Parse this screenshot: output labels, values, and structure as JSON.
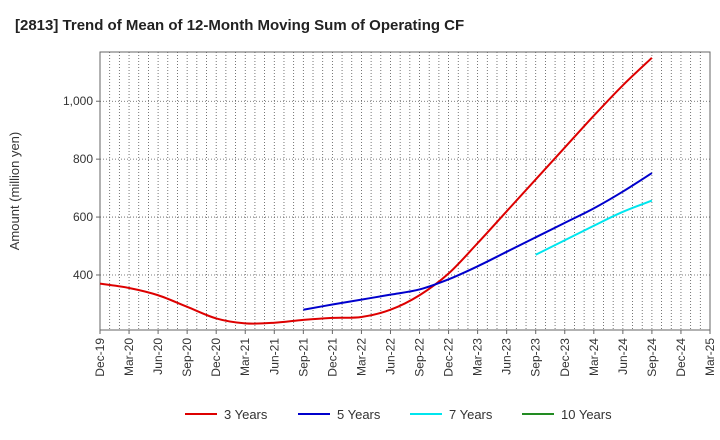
{
  "chart_data": {
    "type": "line",
    "title": "[2813]  Trend of Mean of 12-Month Moving Sum of Operating CF",
    "xlabel": "",
    "ylabel": "Amount (million yen)",
    "x_ticks": [
      "Dec-19",
      "Mar-20",
      "Jun-20",
      "Sep-20",
      "Dec-20",
      "Mar-21",
      "Jun-21",
      "Sep-21",
      "Dec-21",
      "Mar-22",
      "Jun-22",
      "Sep-22",
      "Dec-22",
      "Mar-23",
      "Jun-23",
      "Sep-23",
      "Dec-23",
      "Mar-24",
      "Jun-24",
      "Sep-24",
      "Dec-24",
      "Mar-25"
    ],
    "y_ticks": [
      400,
      600,
      800,
      1000
    ],
    "y_tick_labels": [
      "400",
      "600",
      "800",
      "1,000"
    ],
    "ylim": [
      210,
      1170
    ],
    "grid": true,
    "legend_position": "bottom",
    "series": [
      {
        "name": "3 Years",
        "color": "#dd0000",
        "points": [
          [
            "Dec-19",
            370
          ],
          [
            "Mar-20",
            355
          ],
          [
            "Jun-20",
            330
          ],
          [
            "Sep-20",
            290
          ],
          [
            "Dec-20",
            250
          ],
          [
            "Mar-21",
            233
          ],
          [
            "Jun-21",
            235
          ],
          [
            "Sep-21",
            245
          ],
          [
            "Dec-21",
            252
          ],
          [
            "Mar-22",
            255
          ],
          [
            "Jun-22",
            280
          ],
          [
            "Sep-22",
            330
          ],
          [
            "Dec-22",
            405
          ],
          [
            "Mar-23",
            510
          ],
          [
            "Jun-23",
            620
          ],
          [
            "Sep-23",
            730
          ],
          [
            "Dec-23",
            840
          ],
          [
            "Mar-24",
            950
          ],
          [
            "Jun-24",
            1055
          ],
          [
            "Sep-24",
            1150
          ]
        ]
      },
      {
        "name": "5 Years",
        "color": "#0000cc",
        "points": [
          [
            "Sep-21",
            280
          ],
          [
            "Dec-21",
            298
          ],
          [
            "Mar-22",
            315
          ],
          [
            "Jun-22",
            332
          ],
          [
            "Sep-22",
            350
          ],
          [
            "Dec-22",
            385
          ],
          [
            "Mar-23",
            430
          ],
          [
            "Jun-23",
            480
          ],
          [
            "Sep-23",
            530
          ],
          [
            "Dec-23",
            580
          ],
          [
            "Mar-24",
            630
          ],
          [
            "Jun-24",
            688
          ],
          [
            "Sep-24",
            752
          ]
        ]
      },
      {
        "name": "7 Years",
        "color": "#00e5ee",
        "points": [
          [
            "Sep-23",
            470
          ],
          [
            "Dec-23",
            520
          ],
          [
            "Mar-24",
            570
          ],
          [
            "Jun-24",
            618
          ],
          [
            "Sep-24",
            657
          ]
        ]
      },
      {
        "name": "10 Years",
        "color": "#228b22",
        "points": []
      }
    ]
  }
}
